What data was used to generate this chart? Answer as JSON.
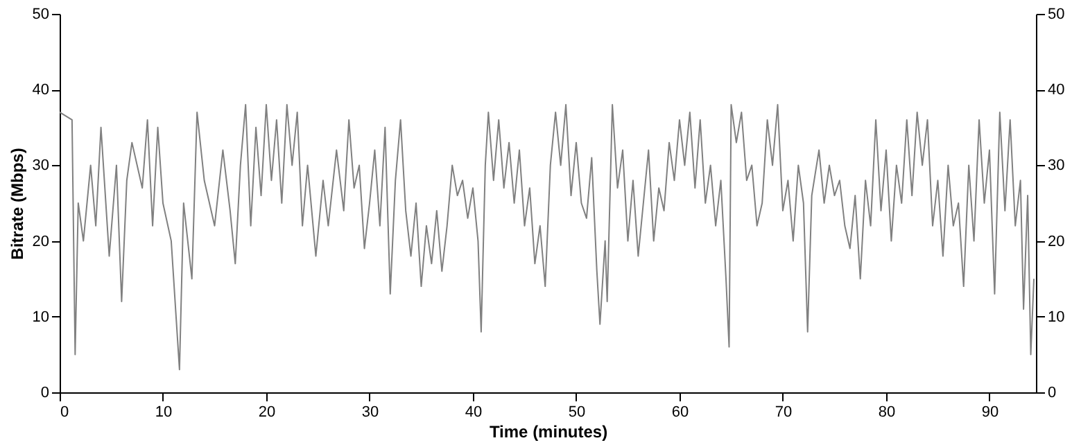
{
  "chart_data": {
    "type": "line",
    "xlabel": "Time (minutes)",
    "ylabel": "Bitrate (Mbps)",
    "xlim": [
      0,
      94.5
    ],
    "xticks": [
      0,
      10,
      20,
      30,
      40,
      50,
      60,
      70,
      80,
      90
    ],
    "ylim": [
      0,
      50
    ],
    "yticks": [
      0,
      10,
      20,
      30,
      40,
      50
    ],
    "y2lim": [
      0,
      50
    ],
    "y2ticks": [
      0,
      10,
      20,
      30,
      40,
      50
    ],
    "grid": false,
    "marker": "none",
    "line_style": "solid",
    "series": [
      {
        "color": "#808080",
        "x": [
          0,
          1.2,
          1.5,
          1.8,
          2.3,
          3,
          3.5,
          4,
          4.8,
          5.5,
          6,
          6.5,
          7,
          8,
          8.5,
          9,
          9.5,
          10,
          10.8,
          11.6,
          12,
          12.8,
          13.3,
          14,
          15,
          15.8,
          16.5,
          17,
          17.5,
          18,
          18.5,
          19,
          19.5,
          20,
          20.5,
          21,
          21.5,
          22,
          22.5,
          23,
          23.5,
          24,
          24.8,
          25.5,
          26,
          26.8,
          27.5,
          28,
          28.5,
          29,
          29.5,
          30,
          30.5,
          31,
          31.5,
          32,
          32.5,
          33,
          33.5,
          34,
          34.5,
          35,
          35.5,
          36,
          36.5,
          37,
          37.5,
          38,
          38.5,
          39,
          39.5,
          40,
          40.5,
          40.8,
          41.2,
          41.5,
          42,
          42.5,
          43,
          43.5,
          44,
          44.5,
          45,
          45.5,
          46,
          46.5,
          47,
          47.5,
          48,
          48.5,
          49,
          49.5,
          50,
          50.5,
          51,
          51.5,
          52,
          52.3,
          52.8,
          53,
          53.5,
          54,
          54.5,
          55,
          55.5,
          56,
          56.5,
          57,
          57.5,
          58,
          58.5,
          59,
          59.5,
          60,
          60.5,
          61,
          61.5,
          62,
          62.5,
          63,
          63.5,
          64,
          64.5,
          64.8,
          65,
          65.5,
          66,
          66.5,
          67,
          67.5,
          68,
          68.5,
          69,
          69.5,
          70,
          70.5,
          71,
          71.5,
          72,
          72.4,
          72.8,
          73.5,
          74,
          74.5,
          75,
          75.5,
          76,
          76.5,
          77,
          77.5,
          78,
          78.5,
          79,
          79.5,
          80,
          80.5,
          81,
          81.5,
          82,
          82.5,
          83,
          83.5,
          84,
          84.5,
          85,
          85.5,
          86,
          86.5,
          87,
          87.5,
          88,
          88.5,
          89,
          89.5,
          90,
          90.5,
          91,
          91.5,
          92,
          92.5,
          93,
          93.3,
          93.7,
          94,
          94.3
        ],
        "values": [
          37,
          36,
          5,
          25,
          20,
          30,
          22,
          35,
          18,
          30,
          12,
          28,
          33,
          27,
          36,
          22,
          35,
          25,
          20,
          3,
          25,
          15,
          37,
          28,
          22,
          32,
          24,
          17,
          30,
          38,
          22,
          35,
          26,
          38,
          28,
          36,
          25,
          38,
          30,
          37,
          22,
          30,
          18,
          28,
          22,
          32,
          24,
          36,
          27,
          30,
          19,
          25,
          32,
          22,
          35,
          13,
          28,
          36,
          24,
          18,
          25,
          14,
          22,
          17,
          24,
          16,
          22,
          30,
          26,
          28,
          23,
          27,
          20,
          8,
          30,
          37,
          28,
          36,
          27,
          33,
          25,
          32,
          22,
          27,
          17,
          22,
          14,
          30,
          37,
          30,
          38,
          26,
          33,
          25,
          23,
          31,
          16,
          9,
          20,
          12,
          38,
          27,
          32,
          20,
          28,
          18,
          25,
          32,
          20,
          27,
          24,
          33,
          28,
          36,
          30,
          37,
          27,
          36,
          25,
          30,
          22,
          28,
          15,
          6,
          38,
          33,
          37,
          28,
          30,
          22,
          25,
          36,
          30,
          38,
          24,
          28,
          20,
          30,
          25,
          8,
          26,
          32,
          25,
          30,
          26,
          28,
          22,
          19,
          26,
          15,
          28,
          22,
          36,
          24,
          32,
          20,
          30,
          25,
          36,
          26,
          37,
          30,
          36,
          22,
          28,
          18,
          30,
          22,
          25,
          14,
          30,
          20,
          36,
          25,
          32,
          13,
          37,
          24,
          36,
          22,
          28,
          11,
          26,
          5,
          15
        ]
      }
    ]
  }
}
